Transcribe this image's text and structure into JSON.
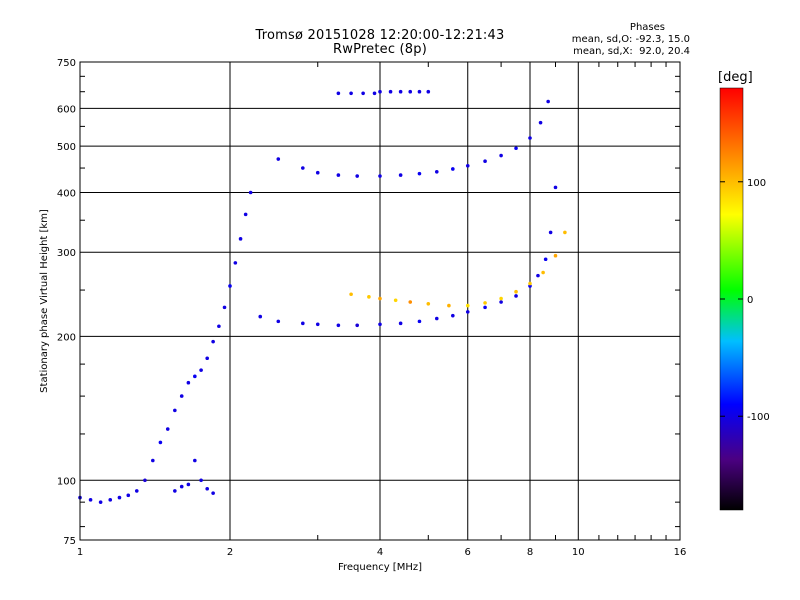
{
  "title": {
    "line1": "Tromsø 20151028 12:20:00-12:21:43",
    "line2": "RwPretec (8p)"
  },
  "stats": {
    "heading": "Phases",
    "o_line": "mean, sd,O: -92.3, 15.0",
    "x_line": "mean, sd,X:  92.0, 20.4"
  },
  "chart_data": {
    "type": "scatter",
    "title": "Tromsø 20151028 12:20:00-12:21:43",
    "subtitle": "RwPretec (8p)",
    "xlabel": "Frequency [MHz]",
    "ylabel": "Stationary phase Virtual Height [km]",
    "x_scale": "log",
    "y_scale": "log",
    "xlim": [
      1,
      16
    ],
    "ylim": [
      75,
      750
    ],
    "x_ticks": [
      1,
      2,
      4,
      6,
      8,
      10,
      16
    ],
    "x_tick_labels": [
      "1",
      "2",
      "4",
      "6",
      "8",
      "10",
      "16"
    ],
    "y_ticks": [
      75,
      100,
      200,
      300,
      400,
      500,
      600,
      750
    ],
    "y_tick_labels": [
      "75",
      "100",
      "200",
      "300",
      "400",
      "500",
      "600",
      "750"
    ],
    "grid": true,
    "colorbar": {
      "label": "[deg]",
      "range": [
        -180,
        180
      ],
      "ticks": [
        -100,
        0,
        100
      ],
      "tick_labels": [
        "-100",
        "0",
        "100"
      ],
      "colormap": "rainbow"
    },
    "series": [
      {
        "x": [
          1.0,
          1.05,
          1.1,
          1.15,
          1.2,
          1.25,
          1.3,
          1.35,
          1.4,
          1.45,
          1.5,
          1.55,
          1.6,
          1.65,
          1.7,
          1.75,
          1.8,
          1.85,
          1.9,
          1.95,
          2.0,
          2.05,
          2.1,
          2.15,
          2.2
        ],
        "y": [
          92,
          91,
          90,
          91,
          92,
          93,
          95,
          100,
          110,
          120,
          128,
          140,
          150,
          160,
          165,
          170,
          180,
          195,
          210,
          230,
          255,
          285,
          320,
          360,
          400
        ],
        "phase": [
          -100,
          -100,
          -100,
          -100,
          -100,
          -100,
          -100,
          -105,
          -100,
          -95,
          -100,
          -100,
          -100,
          -100,
          -95,
          -100,
          -100,
          -100,
          -100,
          -100,
          -95,
          -100,
          -100,
          -100,
          -100
        ]
      },
      {
        "x": [
          2.3,
          2.5,
          2.8,
          3.0,
          3.3,
          3.6,
          4.0,
          4.4,
          4.8,
          5.2,
          5.6,
          6.0,
          6.5,
          7.0,
          7.5,
          8.0,
          8.3,
          8.6,
          8.8,
          9.0
        ],
        "y": [
          220,
          215,
          213,
          212,
          211,
          211,
          212,
          213,
          215,
          218,
          221,
          225,
          230,
          236,
          243,
          255,
          268,
          290,
          330,
          410
        ],
        "phase": [
          -100,
          -100,
          -100,
          -100,
          -100,
          -105,
          -100,
          -100,
          -95,
          -100,
          -100,
          -100,
          -95,
          -100,
          -100,
          -95,
          -100,
          -95,
          -100,
          -100
        ]
      },
      {
        "x": [
          3.5,
          3.8,
          4.0,
          4.3,
          4.6,
          5.0,
          5.5,
          6.0,
          6.5,
          7.0,
          7.5,
          8.0,
          8.5,
          9.0,
          9.4
        ],
        "y": [
          245,
          242,
          240,
          238,
          236,
          234,
          232,
          232,
          235,
          240,
          248,
          258,
          272,
          295,
          330
        ],
        "phase": [
          100,
          95,
          110,
          90,
          120,
          100,
          105,
          85,
          95,
          90,
          100,
          95,
          100,
          110,
          100
        ]
      },
      {
        "x": [
          2.5,
          2.8,
          3.0,
          3.3,
          3.6,
          4.0,
          4.4,
          4.8,
          5.2,
          5.6,
          6.0,
          6.5,
          7.0,
          7.5,
          8.0,
          8.4,
          8.7
        ],
        "y": [
          470,
          450,
          440,
          435,
          433,
          433,
          435,
          438,
          442,
          448,
          455,
          465,
          478,
          495,
          520,
          560,
          620
        ],
        "phase": [
          -100,
          -100,
          -100,
          -100,
          -100,
          -100,
          -100,
          -95,
          -100,
          -95,
          -100,
          -100,
          -100,
          -95,
          -100,
          -100,
          -100
        ]
      },
      {
        "x": [
          3.3,
          3.5,
          3.7,
          3.9,
          4.0,
          4.2,
          4.4,
          4.6,
          4.8,
          5.0
        ],
        "y": [
          645,
          645,
          645,
          645,
          650,
          650,
          650,
          650,
          650,
          650
        ],
        "phase": [
          -100,
          -100,
          -100,
          -100,
          -100,
          -100,
          -100,
          -100,
          -100,
          -100
        ]
      },
      {
        "x": [
          1.55,
          1.6,
          1.65,
          1.7,
          1.75,
          1.8,
          1.85
        ],
        "y": [
          95,
          97,
          98,
          110,
          100,
          96,
          94
        ],
        "phase": [
          -100,
          -100,
          -100,
          -100,
          -100,
          -100,
          -100
        ]
      }
    ]
  },
  "colors": {
    "grid": "#000000",
    "background": "#ffffff"
  }
}
